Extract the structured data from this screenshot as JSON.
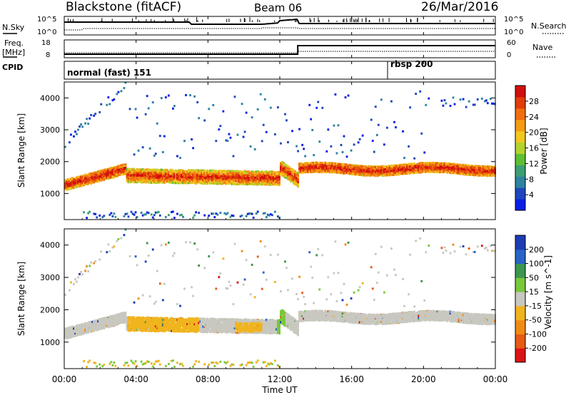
{
  "header": {
    "station": "Blackstone (fitACF)",
    "beam": "Beam 06",
    "date": "26/Mar/2016"
  },
  "noise_panel": {
    "left_label": "N.Sky",
    "right_label": "N.Search",
    "left_ticks": [
      "10^5",
      "10^0"
    ],
    "right_ticks": [
      "10^5",
      "10^0"
    ]
  },
  "freq_panel": {
    "left_label_1": "Freq.",
    "left_label_2": "[MHz]",
    "right_label": "Nave",
    "left_ticks": [
      "18",
      "8"
    ],
    "right_ticks": [
      "60",
      "0"
    ]
  },
  "cpid_panel": {
    "label": "CPID",
    "segments": [
      {
        "name": "normal (fast) 151",
        "start_hour": 0
      },
      {
        "name": "rbsp 200",
        "start_hour": 18
      }
    ]
  },
  "x_axis": {
    "label": "Time UT",
    "ticks": [
      "00:00",
      "04:00",
      "08:00",
      "12:00",
      "16:00",
      "20:00",
      "00:00"
    ]
  },
  "chart_data": [
    {
      "type": "heatmap",
      "title": "Power",
      "ylabel": "Slant Range [km]",
      "xlabel": "",
      "y_ticks": [
        1000,
        2000,
        3000,
        4000
      ],
      "xlim_hours": [
        0,
        24
      ],
      "ylim_km": [
        180,
        4500
      ],
      "colorbar": {
        "label": "Power [dB]",
        "ticks": [
          "4",
          "8",
          "12",
          "16",
          "20",
          "24",
          "28"
        ],
        "colors": [
          "#0a1ee6",
          "#1e46be",
          "#2d82a0",
          "#3c9f73",
          "#5fbe32",
          "#b4d22d",
          "#f0c81e",
          "#f59b14",
          "#f06e0f",
          "#e13c0a",
          "#d20f0f"
        ]
      }
    },
    {
      "type": "heatmap",
      "title": "Velocity",
      "ylabel": "Slant Range [km]",
      "xlabel": "Time UT",
      "y_ticks": [
        1000,
        2000,
        3000,
        4000
      ],
      "xlim_hours": [
        0,
        24
      ],
      "ylim_km": [
        180,
        4500
      ],
      "colorbar": {
        "label": "Velocity [m s^-1]",
        "ticks": [
          "200",
          "100",
          "50",
          "15",
          "-15",
          "-50",
          "-100",
          "-200"
        ],
        "colors": [
          "#1e3cb4",
          "#2864c8",
          "#3c9650",
          "#78c83c",
          "#c8c8c0",
          "#f0b41e",
          "#f08c14",
          "#e65a14",
          "#dc1414"
        ]
      }
    }
  ],
  "colors": {
    "ground_scatter": "#c8c8c0",
    "axis": "#000000"
  }
}
